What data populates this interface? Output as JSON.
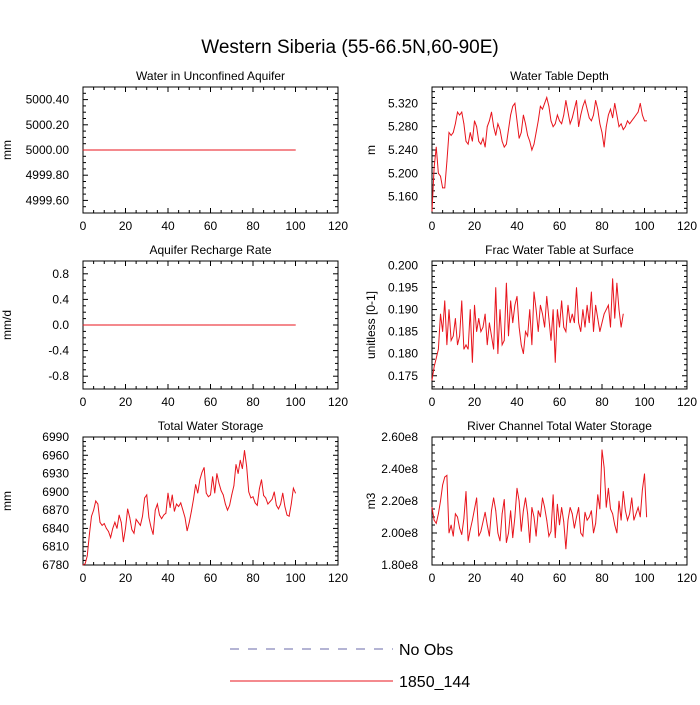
{
  "title": "Western Siberia (55-66.5N,60-90E)",
  "legend": {
    "entries": [
      {
        "label": "No Obs",
        "color": "#6a6aa8",
        "style": "dashed"
      },
      {
        "label": "1850_144",
        "color": "#e8141c",
        "style": "solid"
      }
    ]
  },
  "colors": {
    "series": "#e8141c",
    "axis": "#000000"
  },
  "chart_data": [
    {
      "type": "line",
      "title": "Water in Unconfined Aquifer",
      "ylabel": "mm",
      "xlim": [
        0,
        120
      ],
      "ylim": [
        4999.5,
        5000.5
      ],
      "x_ticks": [
        0,
        20,
        40,
        60,
        80,
        100,
        120
      ],
      "y_ticks": [
        4999.6,
        4999.8,
        5000.0,
        5000.2,
        5000.4
      ],
      "y_tick_labels": [
        "4999.60",
        "4999.80",
        "5000.00",
        "5000.20",
        "5000.40"
      ],
      "series": [
        {
          "values": [
            5000.0,
            5000.0,
            5000.0,
            5000.0,
            5000.0,
            5000.0,
            5000.0,
            5000.0,
            5000.0,
            5000.0,
            5000.0,
            5000.0,
            5000.0,
            5000.0,
            5000.0,
            5000.0,
            5000.0,
            5000.0,
            5000.0,
            5000.0,
            5000.0,
            5000.0,
            5000.0,
            5000.0,
            5000.0,
            5000.0,
            5000.0,
            5000.0,
            5000.0,
            5000.0,
            5000.0,
            5000.0,
            5000.0,
            5000.0,
            5000.0,
            5000.0,
            5000.0,
            5000.0,
            5000.0,
            5000.0,
            5000.0,
            5000.0,
            5000.0,
            5000.0,
            5000.0,
            5000.0,
            5000.0,
            5000.0,
            5000.0,
            5000.0,
            5000.0,
            5000.0,
            5000.0,
            5000.0,
            5000.0,
            5000.0,
            5000.0,
            5000.0,
            5000.0,
            5000.0,
            5000.0,
            5000.0,
            5000.0,
            5000.0,
            5000.0,
            5000.0,
            5000.0,
            5000.0,
            5000.0,
            5000.0,
            5000.0,
            5000.0,
            5000.0,
            5000.0,
            5000.0,
            5000.0,
            5000.0,
            5000.0,
            5000.0,
            5000.0,
            5000.0,
            5000.0,
            5000.0,
            5000.0,
            5000.0,
            5000.0,
            5000.0,
            5000.0,
            5000.0,
            5000.0,
            5000.0,
            5000.0,
            5000.0,
            5000.0,
            5000.0,
            5000.0,
            5000.0,
            5000.0,
            5000.0,
            5000.0,
            5000.0
          ]
        }
      ]
    },
    {
      "type": "line",
      "title": "Water Table Depth",
      "ylabel": "m",
      "xlim": [
        0,
        120
      ],
      "ylim": [
        5.132,
        5.348
      ],
      "x_ticks": [
        0,
        20,
        40,
        60,
        80,
        100,
        120
      ],
      "y_ticks": [
        5.16,
        5.2,
        5.24,
        5.28,
        5.32
      ],
      "y_tick_labels": [
        "5.160",
        "5.200",
        "5.240",
        "5.280",
        "5.320"
      ],
      "series": [
        {
          "values": [
            5.135,
            5.21,
            5.245,
            5.2,
            5.195,
            5.175,
            5.175,
            5.22,
            5.27,
            5.265,
            5.27,
            5.285,
            5.305,
            5.3,
            5.305,
            5.285,
            5.255,
            5.25,
            5.27,
            5.255,
            5.29,
            5.28,
            5.255,
            5.25,
            5.26,
            5.245,
            5.28,
            5.29,
            5.305,
            5.28,
            5.265,
            5.285,
            5.275,
            5.255,
            5.245,
            5.25,
            5.275,
            5.3,
            5.315,
            5.32,
            5.29,
            5.26,
            5.27,
            5.3,
            5.285,
            5.265,
            5.255,
            5.24,
            5.25,
            5.27,
            5.29,
            5.315,
            5.31,
            5.32,
            5.33,
            5.315,
            5.29,
            5.28,
            5.285,
            5.3,
            5.29,
            5.285,
            5.3,
            5.325,
            5.305,
            5.285,
            5.295,
            5.31,
            5.325,
            5.28,
            5.3,
            5.315,
            5.325,
            5.31,
            5.295,
            5.29,
            5.3,
            5.325,
            5.31,
            5.285,
            5.27,
            5.245,
            5.28,
            5.3,
            5.31,
            5.295,
            5.32,
            5.3,
            5.28,
            5.285,
            5.275,
            5.28,
            5.29,
            5.285,
            5.29,
            5.295,
            5.3,
            5.305,
            5.32,
            5.3,
            5.29,
            5.29
          ]
        }
      ]
    },
    {
      "type": "line",
      "title": "Aquifer Recharge Rate",
      "ylabel": "mm/d",
      "xlim": [
        0,
        120
      ],
      "ylim": [
        -1.0,
        1.0
      ],
      "x_ticks": [
        0,
        20,
        40,
        60,
        80,
        100,
        120
      ],
      "y_ticks": [
        -0.8,
        -0.4,
        0.0,
        0.4,
        0.8
      ],
      "y_tick_labels": [
        "-0.8",
        "-0.4",
        "0.0",
        "0.4",
        "0.8"
      ],
      "series": [
        {
          "values": [
            0.0,
            0.0,
            0.0,
            0.0,
            0.0,
            0.0,
            0.0,
            0.0,
            0.0,
            0.0,
            0.0,
            0.0,
            0.0,
            0.0,
            0.0,
            0.0,
            0.0,
            0.0,
            0.0,
            0.0,
            0.0,
            0.0,
            0.0,
            0.0,
            0.0,
            0.0,
            0.0,
            0.0,
            0.0,
            0.0,
            0.0,
            0.0,
            0.0,
            0.0,
            0.0,
            0.0,
            0.0,
            0.0,
            0.0,
            0.0,
            0.0,
            0.0,
            0.0,
            0.0,
            0.0,
            0.0,
            0.0,
            0.0,
            0.0,
            0.0,
            0.0,
            0.0,
            0.0,
            0.0,
            0.0,
            0.0,
            0.0,
            0.0,
            0.0,
            0.0,
            0.0,
            0.0,
            0.0,
            0.0,
            0.0,
            0.0,
            0.0,
            0.0,
            0.0,
            0.0,
            0.0,
            0.0,
            0.0,
            0.0,
            0.0,
            0.0,
            0.0,
            0.0,
            0.0,
            0.0,
            0.0,
            0.0,
            0.0,
            0.0,
            0.0,
            0.0,
            0.0,
            0.0,
            0.0,
            0.0,
            0.0,
            0.0,
            0.0,
            0.0,
            0.0,
            0.0,
            0.0,
            0.0,
            0.0,
            0.0,
            0.0
          ]
        }
      ]
    },
    {
      "type": "line",
      "title": "Frac Water Table at Surface",
      "ylabel": "unitless [0-1]",
      "xlim": [
        0,
        120
      ],
      "ylim": [
        0.172,
        0.201
      ],
      "x_ticks": [
        0,
        20,
        40,
        60,
        80,
        100,
        120
      ],
      "y_ticks": [
        0.175,
        0.18,
        0.185,
        0.19,
        0.195,
        0.2
      ],
      "y_tick_labels": [
        "0.175",
        "0.180",
        "0.185",
        "0.190",
        "0.195",
        "0.200"
      ],
      "series": [
        {
          "values": [
            0.174,
            0.177,
            0.179,
            0.181,
            0.189,
            0.185,
            0.192,
            0.182,
            0.19,
            0.183,
            0.184,
            0.188,
            0.182,
            0.184,
            0.192,
            0.181,
            0.182,
            0.181,
            0.19,
            0.178,
            0.191,
            0.185,
            0.188,
            0.185,
            0.186,
            0.189,
            0.182,
            0.187,
            0.184,
            0.181,
            0.195,
            0.18,
            0.19,
            0.182,
            0.183,
            0.196,
            0.184,
            0.192,
            0.187,
            0.191,
            0.193,
            0.186,
            0.182,
            0.18,
            0.185,
            0.184,
            0.19,
            0.182,
            0.194,
            0.19,
            0.185,
            0.191,
            0.189,
            0.186,
            0.193,
            0.188,
            0.183,
            0.19,
            0.178,
            0.19,
            0.186,
            0.192,
            0.186,
            0.185,
            0.191,
            0.187,
            0.189,
            0.187,
            0.195,
            0.187,
            0.185,
            0.19,
            0.186,
            0.191,
            0.187,
            0.194,
            0.185,
            0.191,
            0.188,
            0.185,
            0.187,
            0.189,
            0.19,
            0.191,
            0.186,
            0.197,
            0.188,
            0.196,
            0.19,
            0.186,
            0.189
          ]
        }
      ]
    },
    {
      "type": "line",
      "title": "Total Water Storage",
      "ylabel": "mm",
      "xlim": [
        0,
        120
      ],
      "ylim": [
        6780,
        6990
      ],
      "x_ticks": [
        0,
        20,
        40,
        60,
        80,
        100,
        120
      ],
      "y_ticks": [
        6780,
        6810,
        6840,
        6870,
        6900,
        6930,
        6960,
        6990
      ],
      "y_tick_labels": [
        "6780",
        "6810",
        "6840",
        "6870",
        "6900",
        "6930",
        "6960",
        "6990"
      ],
      "series": [
        {
          "values": [
            6780,
            6782,
            6795,
            6830,
            6860,
            6870,
            6885,
            6880,
            6850,
            6845,
            6848,
            6840,
            6835,
            6825,
            6840,
            6850,
            6840,
            6862,
            6850,
            6818,
            6840,
            6872,
            6858,
            6838,
            6832,
            6855,
            6850,
            6845,
            6860,
            6890,
            6895,
            6858,
            6842,
            6830,
            6870,
            6880,
            6862,
            6856,
            6862,
            6865,
            6898,
            6874,
            6895,
            6868,
            6880,
            6876,
            6882,
            6870,
            6858,
            6836,
            6850,
            6868,
            6888,
            6912,
            6898,
            6920,
            6932,
            6940,
            6898,
            6892,
            6895,
            6925,
            6898,
            6930,
            6914,
            6902,
            6895,
            6880,
            6870,
            6878,
            6895,
            6910,
            6945,
            6930,
            6952,
            6938,
            6968,
            6942,
            6900,
            6890,
            6892,
            6882,
            6878,
            6905,
            6920,
            6894,
            6890,
            6880,
            6884,
            6888,
            6900,
            6878,
            6872,
            6880,
            6898,
            6876,
            6862,
            6860,
            6880,
            6906,
            6898
          ]
        }
      ]
    },
    {
      "type": "line",
      "title": "River Channel Total Water Storage",
      "ylabel": "m3",
      "xlim": [
        0,
        120
      ],
      "ylim": [
        180000000,
        260000000
      ],
      "x_ticks": [
        0,
        20,
        40,
        60,
        80,
        100,
        120
      ],
      "y_ticks": [
        180000000,
        200000000,
        220000000,
        240000000,
        260000000
      ],
      "y_tick_labels": [
        "1.80e8",
        "2.00e8",
        "2.20e8",
        "2.40e8",
        "2.60e8"
      ],
      "series": [
        {
          "values": [
            216000000,
            208000000,
            206000000,
            212000000,
            220000000,
            230000000,
            235000000,
            236000000,
            200000000,
            205000000,
            198000000,
            212000000,
            210000000,
            203000000,
            199000000,
            209000000,
            226000000,
            195000000,
            202000000,
            208000000,
            215000000,
            222000000,
            198000000,
            201000000,
            207000000,
            213000000,
            205000000,
            198000000,
            214000000,
            222000000,
            214000000,
            200000000,
            195000000,
            212000000,
            221000000,
            194000000,
            200000000,
            214000000,
            197000000,
            210000000,
            228000000,
            220000000,
            201000000,
            214000000,
            222000000,
            212000000,
            194000000,
            216000000,
            210000000,
            198000000,
            214000000,
            210000000,
            222000000,
            216000000,
            208000000,
            198000000,
            201000000,
            224000000,
            197000000,
            218000000,
            205000000,
            216000000,
            207000000,
            190000000,
            208000000,
            216000000,
            212000000,
            203000000,
            210000000,
            216000000,
            200000000,
            198000000,
            213000000,
            208000000,
            210000000,
            214000000,
            200000000,
            206000000,
            224000000,
            215000000,
            252000000,
            241000000,
            216000000,
            228000000,
            215000000,
            212000000,
            205000000,
            200000000,
            220000000,
            208000000,
            226000000,
            214000000,
            208000000,
            212000000,
            222000000,
            208000000,
            212000000,
            216000000,
            210000000,
            227000000,
            237000000,
            210000000
          ]
        }
      ]
    }
  ]
}
